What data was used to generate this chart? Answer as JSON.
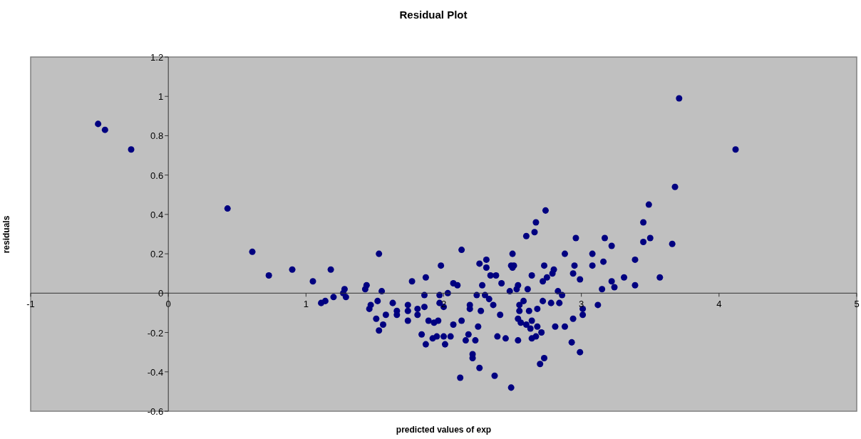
{
  "chart_data": {
    "type": "scatter",
    "title": "Residual Plot",
    "xlabel": "predicted values of exp",
    "ylabel": "residuals",
    "xlim": [
      -1,
      5
    ],
    "xticks": [
      -1,
      0,
      1,
      2,
      3,
      4,
      5
    ],
    "ylim": [
      -0.6,
      1.2
    ],
    "yticks": [
      -0.6,
      -0.4,
      -0.2,
      0,
      0.2,
      0.4,
      0.6,
      0.8,
      1,
      1.2
    ],
    "grid": false,
    "legend": false,
    "marker": "circle",
    "series": [
      {
        "color": "#000080",
        "x": [
          -0.51,
          -0.46,
          -0.27,
          0.43,
          0.61,
          0.73,
          0.9,
          1.05,
          1.18,
          1.11,
          1.14,
          1.2,
          1.28,
          1.27,
          1.29,
          1.44,
          1.43,
          1.53,
          1.55,
          1.47,
          1.46,
          1.52,
          1.51,
          1.58,
          1.56,
          1.53,
          1.63,
          1.66,
          1.66,
          1.74,
          1.74,
          1.74,
          1.77,
          1.81,
          1.81,
          1.86,
          1.87,
          1.86,
          1.89,
          1.93,
          1.96,
          1.84,
          1.87,
          1.92,
          1.95,
          2.0,
          2.05,
          2.01,
          1.98,
          1.97,
          2.03,
          1.97,
          2.0,
          2.07,
          2.1,
          2.13,
          2.13,
          2.07,
          2.18,
          2.16,
          2.23,
          2.21,
          2.21,
          2.26,
          2.12,
          2.25,
          2.26,
          2.19,
          2.19,
          2.24,
          2.28,
          2.27,
          2.74,
          2.67,
          2.66,
          2.6,
          2.96,
          3.17,
          3.22,
          3.45,
          3.45,
          2.88,
          3.08,
          3.08,
          2.95,
          3.16,
          3.39,
          2.5,
          2.31,
          2.31,
          2.49,
          2.51,
          2.5,
          2.73,
          2.8,
          2.79,
          2.75,
          2.72,
          2.64,
          2.94,
          2.99,
          3.22,
          3.24,
          3.31,
          3.39,
          3.15,
          2.34,
          2.38,
          2.42,
          2.48,
          2.54,
          2.53,
          2.61,
          2.83,
          2.86,
          2.78,
          2.84,
          2.72,
          2.58,
          3.12,
          2.3,
          2.33,
          2.36,
          2.41,
          2.55,
          2.55,
          2.62,
          2.68,
          2.54,
          2.56,
          2.64,
          2.6,
          2.63,
          2.68,
          2.71,
          2.67,
          2.64,
          2.94,
          3.01,
          3.01,
          2.81,
          2.88,
          2.93,
          2.99,
          2.39,
          2.45,
          2.54,
          2.73,
          2.7,
          2.37,
          2.49,
          3.71,
          4.12,
          3.68,
          3.49,
          3.5,
          3.66,
          3.57
        ],
        "values": [
          0.86,
          0.83,
          0.73,
          0.43,
          0.21,
          0.09,
          0.12,
          0.06,
          0.12,
          -0.05,
          -0.04,
          -0.02,
          0.02,
          0.0,
          -0.02,
          0.04,
          0.02,
          0.2,
          0.01,
          -0.06,
          -0.08,
          -0.04,
          -0.13,
          -0.11,
          -0.16,
          -0.19,
          -0.05,
          -0.09,
          -0.11,
          -0.06,
          -0.09,
          -0.14,
          0.06,
          -0.08,
          -0.11,
          -0.07,
          0.08,
          -0.01,
          -0.14,
          -0.15,
          -0.14,
          -0.21,
          -0.26,
          -0.23,
          -0.22,
          -0.22,
          -0.22,
          -0.26,
          0.14,
          -0.01,
          0.0,
          -0.05,
          -0.07,
          0.05,
          0.04,
          0.22,
          -0.14,
          -0.16,
          -0.21,
          -0.24,
          -0.24,
          -0.31,
          -0.33,
          -0.38,
          -0.43,
          -0.17,
          0.15,
          -0.06,
          -0.08,
          -0.01,
          0.04,
          -0.09,
          0.42,
          0.36,
          0.31,
          0.29,
          0.28,
          0.28,
          0.24,
          0.36,
          0.26,
          0.2,
          0.2,
          0.14,
          0.14,
          0.16,
          0.17,
          0.2,
          0.17,
          0.13,
          0.14,
          0.14,
          0.13,
          0.14,
          0.12,
          0.1,
          0.08,
          0.06,
          0.09,
          0.1,
          0.07,
          0.06,
          0.03,
          0.08,
          0.04,
          0.02,
          0.09,
          0.09,
          0.05,
          0.01,
          0.04,
          0.02,
          0.02,
          0.01,
          -0.01,
          -0.05,
          -0.05,
          -0.04,
          -0.04,
          -0.06,
          -0.01,
          -0.03,
          -0.06,
          -0.11,
          -0.06,
          -0.09,
          -0.09,
          -0.08,
          -0.13,
          -0.15,
          -0.14,
          -0.16,
          -0.18,
          -0.17,
          -0.2,
          -0.22,
          -0.23,
          -0.13,
          -0.11,
          -0.08,
          -0.17,
          -0.17,
          -0.25,
          -0.3,
          -0.22,
          -0.23,
          -0.24,
          -0.33,
          -0.36,
          -0.42,
          -0.48,
          0.99,
          0.73,
          0.54,
          0.45,
          0.28,
          0.25,
          0.08
        ]
      }
    ]
  }
}
